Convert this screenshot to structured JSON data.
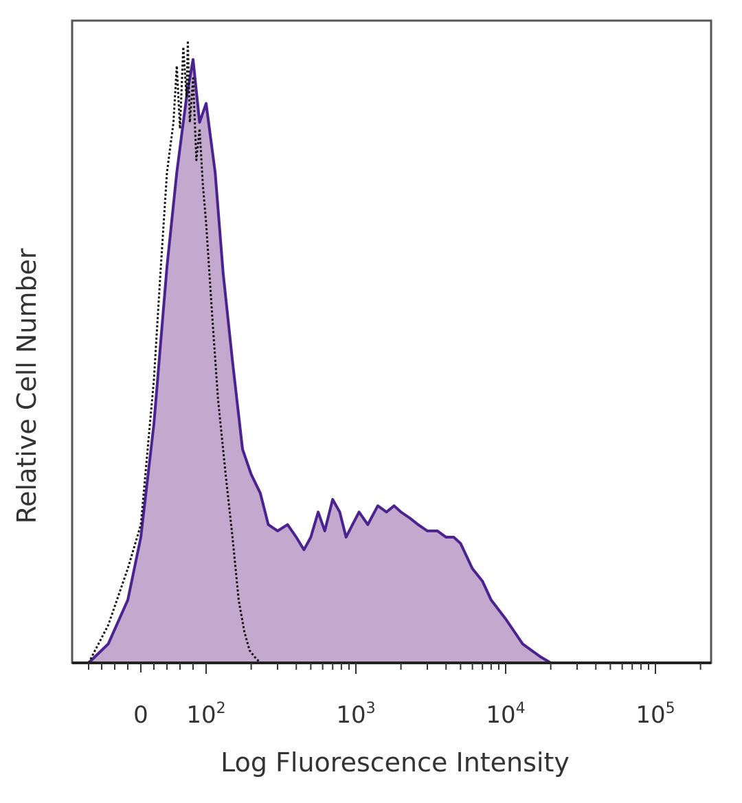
{
  "chart_data": {
    "type": "area",
    "title": "",
    "xlabel": "Log Fluorescence Intensity",
    "ylabel": "Relative Cell Number",
    "x_scale": "biexponential",
    "xlim": [
      -80,
      250000
    ],
    "ylim": [
      0,
      1
    ],
    "grid": false,
    "legend": "none",
    "x_ticks": [
      {
        "value": 0,
        "label": "0"
      },
      {
        "value": 100,
        "base": "10",
        "exp": "2"
      },
      {
        "value": 1000,
        "base": "10",
        "exp": "3"
      },
      {
        "value": 10000,
        "base": "10",
        "exp": "4"
      },
      {
        "value": 100000,
        "base": "10",
        "exp": "5"
      }
    ],
    "series": [
      {
        "style": "filled",
        "color": "#4b2390",
        "fill": "#c3a9ce",
        "x": [
          -80,
          -50,
          -20,
          0,
          20,
          40,
          55,
          70,
          80,
          90,
          100,
          115,
          130,
          150,
          175,
          200,
          230,
          260,
          300,
          350,
          400,
          450,
          500,
          560,
          620,
          700,
          780,
          860,
          950,
          1050,
          1200,
          1400,
          1600,
          1800,
          2000,
          2300,
          2600,
          3000,
          3500,
          4000,
          4500,
          5000,
          6000,
          7000,
          8000,
          10000,
          13000,
          17000,
          20000,
          250000
        ],
        "y": [
          0.0,
          0.03,
          0.1,
          0.2,
          0.38,
          0.63,
          0.78,
          0.9,
          0.96,
          0.86,
          0.89,
          0.78,
          0.62,
          0.48,
          0.34,
          0.3,
          0.27,
          0.22,
          0.21,
          0.22,
          0.2,
          0.18,
          0.2,
          0.24,
          0.21,
          0.26,
          0.24,
          0.2,
          0.22,
          0.24,
          0.22,
          0.25,
          0.24,
          0.25,
          0.24,
          0.23,
          0.22,
          0.21,
          0.21,
          0.2,
          0.2,
          0.19,
          0.15,
          0.13,
          0.1,
          0.07,
          0.03,
          0.01,
          0.0,
          0.0
        ]
      },
      {
        "style": "dotted",
        "color": "#111111",
        "fill": "none",
        "x": [
          -80,
          -50,
          -20,
          0,
          20,
          30,
          40,
          50,
          55,
          60,
          65,
          70,
          72,
          75,
          80,
          85,
          90,
          95,
          100,
          110,
          120,
          135,
          150,
          165,
          180,
          195,
          210,
          230,
          260,
          300,
          250000
        ],
        "y": [
          0.0,
          0.06,
          0.15,
          0.22,
          0.45,
          0.62,
          0.78,
          0.86,
          0.95,
          0.85,
          0.98,
          0.9,
          0.99,
          0.86,
          0.93,
          0.8,
          0.85,
          0.76,
          0.7,
          0.55,
          0.42,
          0.3,
          0.2,
          0.1,
          0.05,
          0.02,
          0.01,
          0.0,
          0.0,
          0.0,
          0.0
        ]
      }
    ]
  }
}
